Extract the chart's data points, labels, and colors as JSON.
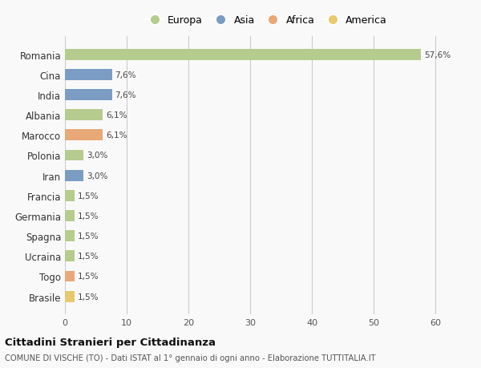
{
  "countries": [
    "Romania",
    "Cina",
    "India",
    "Albania",
    "Marocco",
    "Polonia",
    "Iran",
    "Francia",
    "Germania",
    "Spagna",
    "Ucraina",
    "Togo",
    "Brasile"
  ],
  "values": [
    57.6,
    7.6,
    7.6,
    6.1,
    6.1,
    3.0,
    3.0,
    1.5,
    1.5,
    1.5,
    1.5,
    1.5,
    1.5
  ],
  "labels": [
    "57,6%",
    "7,6%",
    "7,6%",
    "6,1%",
    "6,1%",
    "3,0%",
    "3,0%",
    "1,5%",
    "1,5%",
    "1,5%",
    "1,5%",
    "1,5%",
    "1,5%"
  ],
  "continents": [
    "Europa",
    "Asia",
    "Asia",
    "Europa",
    "Africa",
    "Europa",
    "Asia",
    "Europa",
    "Europa",
    "Europa",
    "Europa",
    "Africa",
    "America"
  ],
  "continent_colors": {
    "Europa": "#b5cc8e",
    "Asia": "#7b9dc4",
    "Africa": "#e8a878",
    "America": "#e8c96e"
  },
  "legend_order": [
    "Europa",
    "Asia",
    "Africa",
    "America"
  ],
  "legend_colors": [
    "#b5cc8e",
    "#7b9dc4",
    "#e8a878",
    "#e8c96e"
  ],
  "xlim": [
    0,
    65
  ],
  "xticks": [
    0,
    10,
    20,
    30,
    40,
    50,
    60
  ],
  "title": "Cittadini Stranieri per Cittadinanza",
  "subtitle": "COMUNE DI VISCHE (TO) - Dati ISTAT al 1° gennaio di ogni anno - Elaborazione TUTTITALIA.IT",
  "bg_color": "#f9f9f9",
  "grid_color": "#cccccc",
  "bar_height": 0.55
}
